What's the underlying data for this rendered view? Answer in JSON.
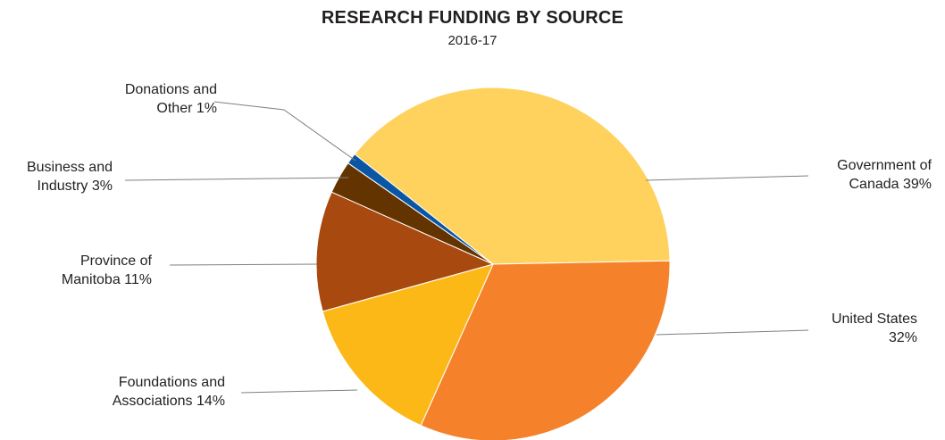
{
  "chart_data": {
    "type": "pie",
    "title": "RESEARCH FUNDING BY SOURCE",
    "subtitle": "2016-17",
    "slices": [
      {
        "label_lines": [
          "Government of",
          "Canada 39%"
        ],
        "value": 39,
        "color": "#fed25c"
      },
      {
        "label_lines": [
          "United States",
          "32%"
        ],
        "value": 32,
        "color": "#f5822a"
      },
      {
        "label_lines": [
          "Foundations and",
          "Associations 14%"
        ],
        "value": 14,
        "color": "#fbb817"
      },
      {
        "label_lines": [
          "Province of",
          "Manitoba 11%"
        ],
        "value": 11,
        "color": "#a84a10"
      },
      {
        "label_lines": [
          "Business and",
          "Industry 3%"
        ],
        "value": 3,
        "color": "#633300"
      },
      {
        "label_lines": [
          "Donations and",
          "Other 1%"
        ],
        "value": 1,
        "color": "#0b56a3"
      }
    ]
  }
}
